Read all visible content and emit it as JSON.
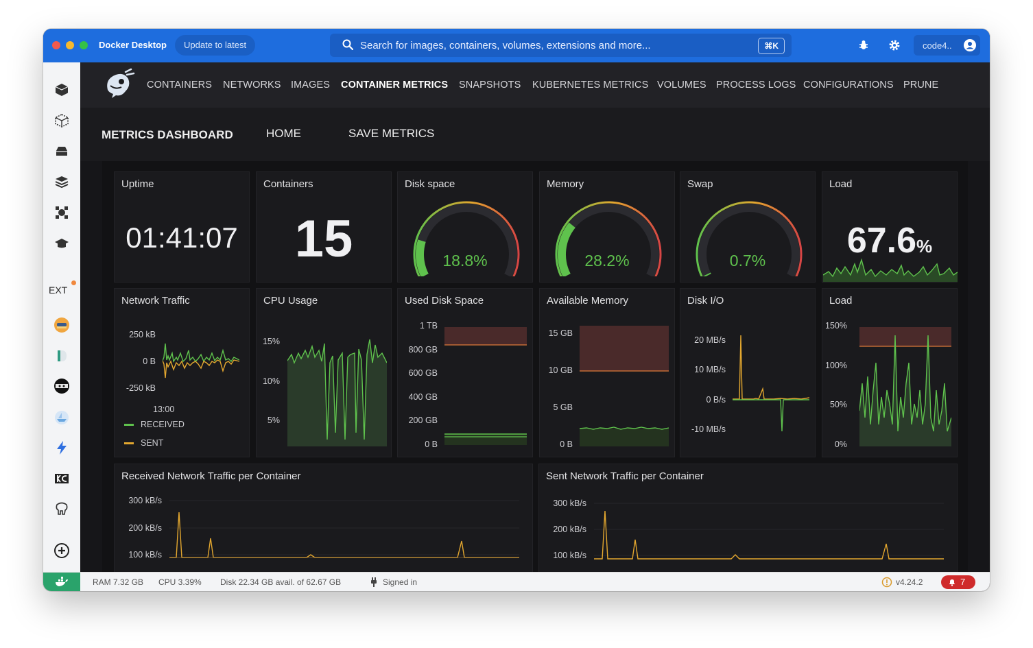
{
  "window": {
    "app_title": "Docker Desktop",
    "update_button": "Update to latest",
    "search_placeholder": "Search for images, containers, volumes, extensions and more...",
    "search_shortcut": "⌘K",
    "username": "code4..",
    "icons": [
      "search-icon",
      "bug-icon",
      "gear-icon",
      "account-icon"
    ]
  },
  "sidebar": {
    "ext_label": "EXT",
    "icons": [
      "containers-icon",
      "images-icon",
      "volumes-icon",
      "builds-icon",
      "dev-environments-icon",
      "learning-center-icon",
      "extension-logs-icon",
      "extension-disk-icon",
      "extension-ninja-icon",
      "extension-ship-icon",
      "extension-lightning-icon",
      "extension-keycloak-icon",
      "extension-elephant-icon",
      "add-extension-icon"
    ]
  },
  "nav": {
    "items": [
      "CONTAINERS",
      "NETWORKS",
      "IMAGES",
      "CONTAINER METRICS",
      "SNAPSHOTS",
      "KUBERNETES METRICS",
      "VOLUMES",
      "PROCESS LOGS",
      "CONFIGURATIONS",
      "PRUNE"
    ],
    "active": "CONTAINER METRICS"
  },
  "subnav": {
    "title": "METRICS DASHBOARD",
    "home": "HOME",
    "save": "SAVE METRICS"
  },
  "stats": {
    "uptime": {
      "title": "Uptime",
      "value": "01:41:07"
    },
    "containers": {
      "title": "Containers",
      "value": "15"
    },
    "disk": {
      "title": "Disk space",
      "value": "18.8%",
      "percent": 18.8
    },
    "memory": {
      "title": "Memory",
      "value": "28.2%",
      "percent": 28.2
    },
    "swap": {
      "title": "Swap",
      "value": "0.7%",
      "percent": 0.7
    },
    "load": {
      "title": "Load",
      "value": "67.6",
      "unit": "%"
    }
  },
  "charts": {
    "network": {
      "title": "Network Traffic",
      "y_ticks": [
        "250 kB",
        "0 B",
        "-250 kB"
      ],
      "x_tick": "13:00",
      "legend": [
        "RECEIVED",
        "SENT"
      ]
    },
    "cpu": {
      "title": "CPU Usage",
      "y_ticks": [
        "15%",
        "10%",
        "5%"
      ]
    },
    "used_disk": {
      "title": "Used Disk Space",
      "y_ticks": [
        "1 TB",
        "800 GB",
        "600 GB",
        "400 GB",
        "200 GB",
        "0 B"
      ]
    },
    "avail_mem": {
      "title": "Available Memory",
      "y_ticks": [
        "15 GB",
        "10 GB",
        "5 GB",
        "0 B"
      ]
    },
    "disk_io": {
      "title": "Disk I/O",
      "y_ticks": [
        "20 MB/s",
        "10 MB/s",
        "0 B/s",
        "-10 MB/s"
      ]
    },
    "load": {
      "title": "Load",
      "y_ticks": [
        "150%",
        "100%",
        "50%",
        "0%"
      ]
    },
    "received": {
      "title": "Received Network Traffic per Container",
      "y_ticks": [
        "300 kB/s",
        "200 kB/s",
        "100 kB/s"
      ]
    },
    "sent": {
      "title": "Sent Network Traffic per Container",
      "y_ticks": [
        "300 kB/s",
        "200 kB/s",
        "100 kB/s"
      ]
    }
  },
  "statusbar": {
    "ram": "RAM 7.32 GB",
    "cpu": "CPU 3.39%",
    "disk": "Disk 22.34 GB avail. of 62.67 GB",
    "signed": "Signed in",
    "version": "v4.24.2",
    "notifications": "7"
  },
  "colors": {
    "green": "#5fc24d",
    "yellow": "#e3a72f",
    "red_threshold": "#5a2a2a",
    "accent_blue": "#1e6dde"
  }
}
